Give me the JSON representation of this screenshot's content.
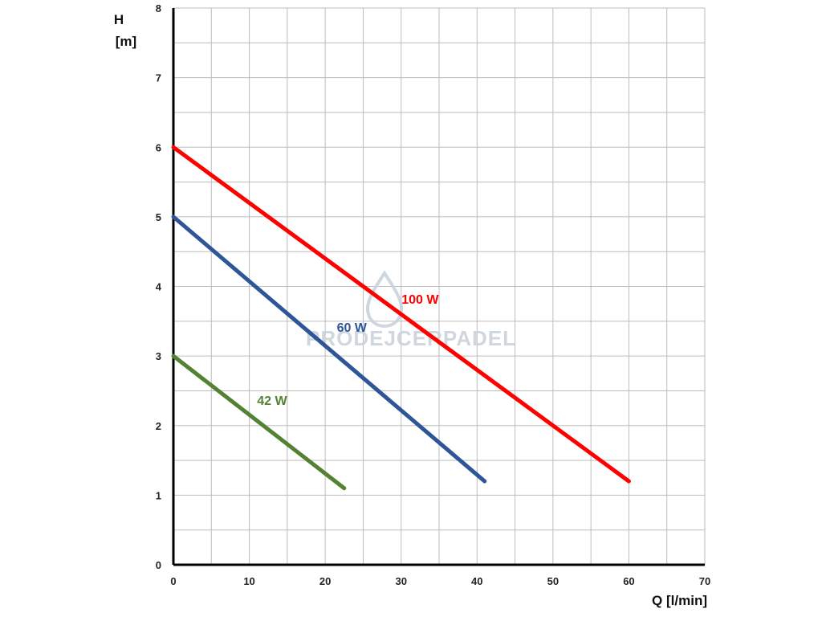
{
  "chart_data": {
    "type": "line",
    "xlabel": "Q [l/min]",
    "ylabel_line1": "H",
    "ylabel_line2": "[m]",
    "xlim": [
      0,
      70
    ],
    "ylim": [
      0,
      8
    ],
    "x_ticks": [
      0,
      10,
      20,
      30,
      40,
      50,
      60,
      70
    ],
    "y_ticks": [
      0,
      1,
      2,
      3,
      4,
      5,
      6,
      7,
      8
    ],
    "x_minor_step": 5,
    "y_minor_step": 0.5,
    "grid": true,
    "series": [
      {
        "name": "100 W",
        "color": "#ff0000",
        "points": [
          [
            0,
            6.0
          ],
          [
            60,
            1.2
          ]
        ],
        "label_at": [
          32.5,
          3.75
        ]
      },
      {
        "name": "60 W",
        "color": "#2e5597",
        "points": [
          [
            0,
            5.0
          ],
          [
            41,
            1.2
          ]
        ],
        "label_at": [
          23.5,
          3.35
        ]
      },
      {
        "name": "42 W",
        "color": "#548235",
        "points": [
          [
            0,
            3.0
          ],
          [
            22.5,
            1.1
          ]
        ],
        "label_at": [
          13,
          2.3
        ]
      }
    ]
  },
  "watermark": {
    "text": "PRODEJCERPADEL",
    "icon": "water-drop-icon"
  }
}
